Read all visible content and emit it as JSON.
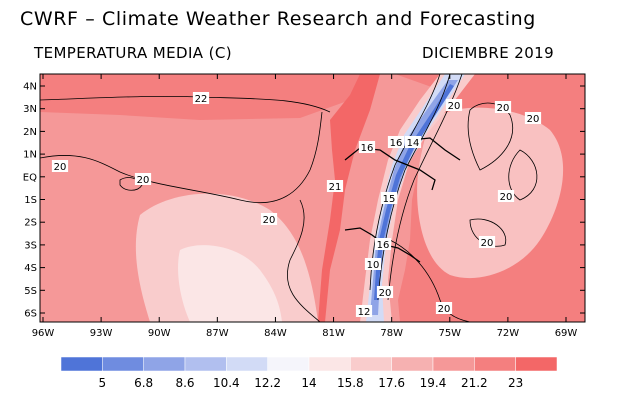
{
  "header": {
    "title": "CWRF – Climate Weather Research and Forecasting",
    "variable": "TEMPERATURA MEDIA (C)",
    "period": "DICIEMBRE 2019"
  },
  "map": {
    "lon_labels": [
      "96W",
      "93W",
      "90W",
      "87W",
      "84W",
      "81W",
      "78W",
      "75W",
      "72W",
      "69W"
    ],
    "lat_labels": [
      "4N",
      "3N",
      "2N",
      "1N",
      "EQ",
      "1S",
      "2S",
      "3S",
      "4S",
      "5S",
      "6S"
    ],
    "contour_labels": [
      "22",
      "20",
      "20",
      "20",
      "20",
      "20",
      "20",
      "20",
      "20",
      "21",
      "16",
      "14",
      "16",
      "16",
      "20",
      "12",
      "20",
      "15",
      "10"
    ]
  },
  "colorbar": {
    "levels": [
      "5",
      "6.8",
      "8.6",
      "10.4",
      "12.2",
      "14",
      "15.8",
      "17.6",
      "19.4",
      "21.2",
      "23"
    ],
    "colors": [
      "#4f74d8",
      "#6f8ce0",
      "#8fa4e7",
      "#b1bfef",
      "#d2dbf6",
      "#f5f5fb",
      "#fbe6e6",
      "#f9cccc",
      "#f6b1b1",
      "#f59898",
      "#f47f7f",
      "#f36767"
    ]
  },
  "palette": {
    "ocean_warm": "#f59898",
    "ocean_cool": "#f9cccc",
    "coast_warm": "#f47f7f",
    "andes_cold": "#4f74d8"
  }
}
